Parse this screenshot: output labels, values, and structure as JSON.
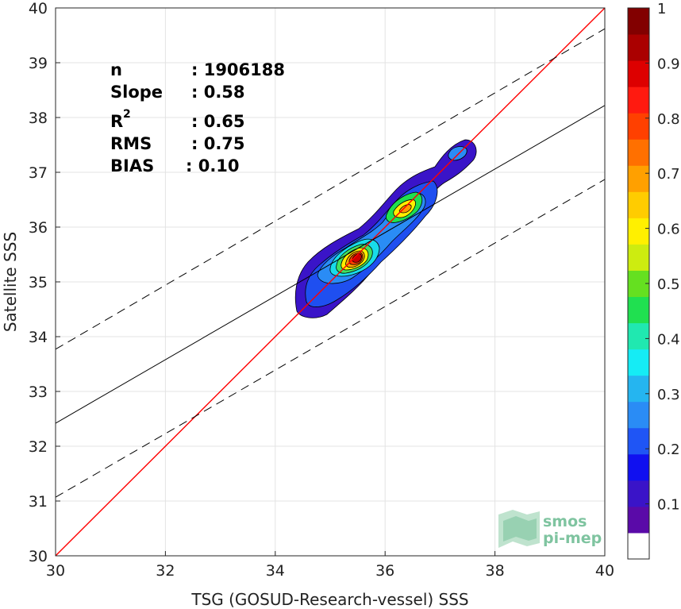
{
  "chart_data": {
    "type": "contour",
    "xlabel": "TSG (GOSUD-Research-vessel) SSS",
    "ylabel": "Satellite SSS",
    "xlim": [
      30,
      40
    ],
    "ylim": [
      30,
      40
    ],
    "xticks": [
      "30",
      "32",
      "34",
      "36",
      "38",
      "40"
    ],
    "yticks": [
      "30",
      "31",
      "32",
      "33",
      "34",
      "35",
      "36",
      "37",
      "38",
      "39",
      "40"
    ],
    "grid": true,
    "stats": {
      "n": {
        "label": "n",
        "value": ": 1906188"
      },
      "slope": {
        "label": "Slope",
        "value": ": 0.58"
      },
      "r2": {
        "label": "R",
        "sup": "2",
        "value": ": 0.65"
      },
      "rms": {
        "label": "RMS",
        "value": ": 0.75"
      },
      "bias": {
        "label": "BIAS",
        "value": ": 0.10"
      }
    },
    "lines": {
      "identity": {
        "color": "#ff0000",
        "points": [
          [
            30,
            30
          ],
          [
            40,
            40
          ]
        ]
      },
      "fit": {
        "color": "#000000",
        "points": [
          [
            30,
            32.42
          ],
          [
            40,
            38.22
          ]
        ]
      },
      "upper_bound": {
        "color": "#000000",
        "dashed": true,
        "points": [
          [
            30,
            33.77
          ],
          [
            40,
            39.62
          ]
        ]
      },
      "lower_bound": {
        "color": "#000000",
        "dashed": true,
        "points": [
          [
            30,
            31.07
          ],
          [
            40,
            36.87
          ]
        ]
      }
    },
    "density_peaks": [
      {
        "x": 35.5,
        "y": 35.45,
        "value": 1.0
      },
      {
        "x": 36.35,
        "y": 36.4,
        "value": 0.65
      },
      {
        "x": 37.35,
        "y": 37.35,
        "value": 0.15
      }
    ],
    "colorbar": {
      "ticks": [
        "0.1",
        "0.2",
        "0.3",
        "0.4",
        "0.5",
        "0.6",
        "0.7",
        "0.8",
        "0.9",
        "1"
      ],
      "tick_values": [
        0.1,
        0.2,
        0.3,
        0.4,
        0.5,
        0.6,
        0.7,
        0.8,
        0.9,
        1.0
      ],
      "colors": [
        "#ffffff",
        "#5a0aa8",
        "#3a14c8",
        "#1010f0",
        "#1f55f5",
        "#2a8cf5",
        "#25b5f0",
        "#15ecf5",
        "#20e8b0",
        "#20e050",
        "#65e020",
        "#cdec10",
        "#fff000",
        "#ffcc00",
        "#ffa000",
        "#ff7000",
        "#ff4000",
        "#ff1a10",
        "#dd0000",
        "#aa0000",
        "#820000"
      ]
    }
  },
  "watermark": {
    "line1": "smos",
    "line2": "pi-mep"
  }
}
